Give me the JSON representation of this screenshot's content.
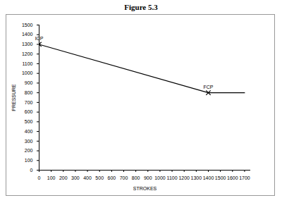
{
  "chart_data": {
    "type": "line",
    "title": "Figure 5.3",
    "x_label": "STROKES",
    "y_label": "PRESSURE",
    "x": [
      0,
      1400,
      1700
    ],
    "values": [
      1300,
      800,
      800
    ],
    "color": "#000000",
    "xlim": [
      0,
      1750
    ],
    "xticks": [
      0,
      100,
      200,
      300,
      400,
      500,
      600,
      700,
      800,
      900,
      1000,
      1100,
      1200,
      1300,
      1400,
      1500,
      1600,
      1700
    ],
    "ylim": [
      0,
      1500
    ],
    "yticks": [
      0,
      100,
      200,
      300,
      400,
      500,
      600,
      700,
      800,
      900,
      1000,
      1100,
      1200,
      1300,
      1400,
      1500
    ],
    "grid": false,
    "annotations": [
      {
        "text": "ICP",
        "x": 0,
        "y": 1300,
        "marker": "x"
      },
      {
        "text": "FCP",
        "x": 1400,
        "y": 800,
        "marker": "x"
      }
    ]
  }
}
